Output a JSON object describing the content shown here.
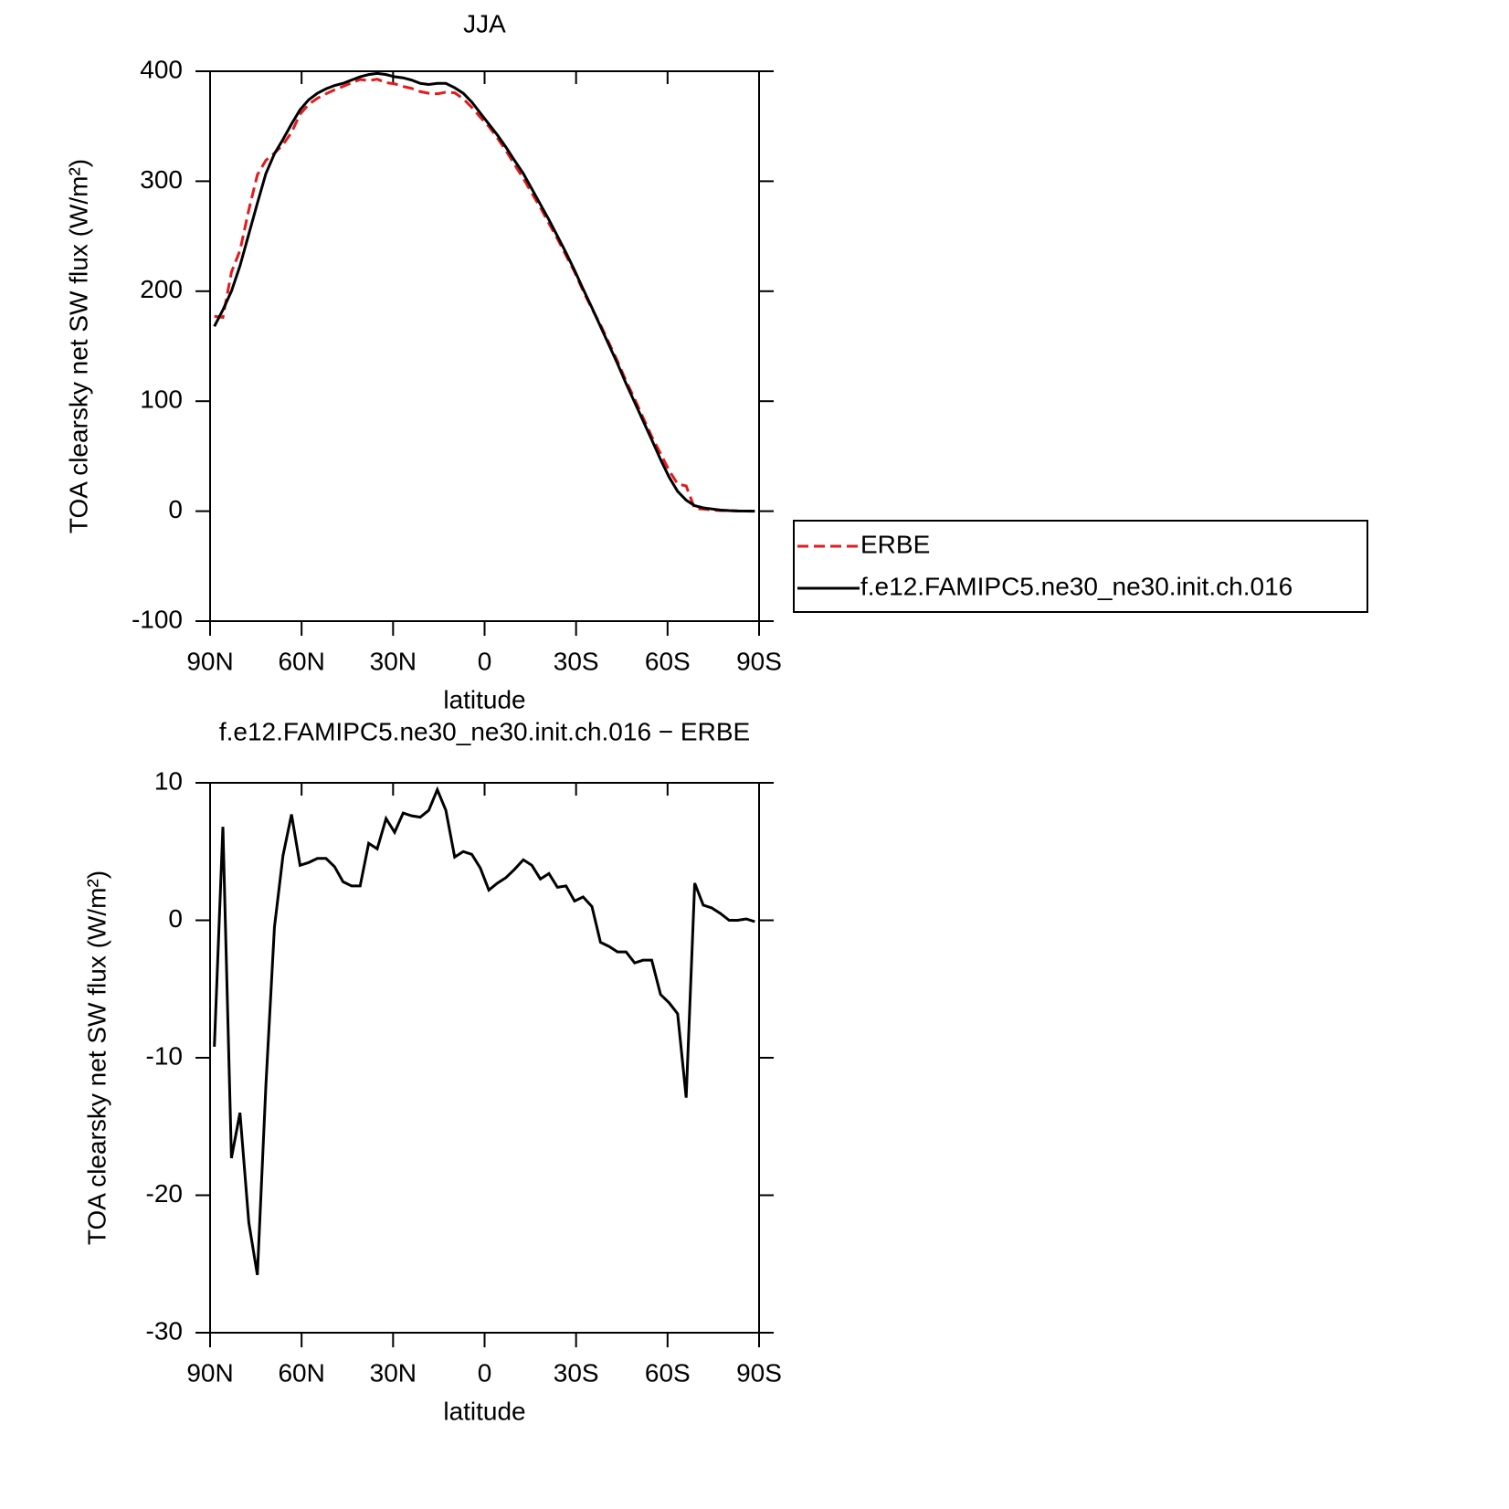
{
  "chart_data": [
    {
      "type": "line",
      "title": "JJA",
      "xlabel": "latitude",
      "ylabel": "TOA clearsky net SW flux (W/m²)",
      "x": [
        88.6,
        85.8,
        83.0,
        80.2,
        77.3,
        74.5,
        71.7,
        68.9,
        66.1,
        63.3,
        60.5,
        57.7,
        54.8,
        52.0,
        49.2,
        46.4,
        43.6,
        40.8,
        38.0,
        35.2,
        32.3,
        29.5,
        26.7,
        23.9,
        21.1,
        18.3,
        15.5,
        12.7,
        9.8,
        7.0,
        4.2,
        1.4,
        -1.4,
        -4.2,
        -7.0,
        -9.8,
        -12.7,
        -15.5,
        -18.3,
        -21.1,
        -23.9,
        -26.7,
        -29.5,
        -32.3,
        -35.2,
        -38.0,
        -40.8,
        -43.6,
        -46.4,
        -49.2,
        -52.0,
        -54.8,
        -57.7,
        -60.5,
        -63.3,
        -66.1,
        -68.9,
        -71.7,
        -74.5,
        -77.3,
        -80.2,
        -83.0,
        -85.8,
        -88.6
      ],
      "series": [
        {
          "name": "ERBE",
          "color": "#e41a1c",
          "style": "dashed",
          "values": [
            177.2,
            176.2,
            217.3,
            237,
            274,
            305.8,
            319,
            325.5,
            333.3,
            344.3,
            361,
            369.8,
            375.5,
            379.5,
            383.1,
            386.2,
            389.5,
            392.5,
            391.4,
            392.8,
            389.6,
            388.6,
            386.2,
            384.4,
            381.5,
            380,
            379.5,
            381,
            380.4,
            375,
            367.2,
            358.2,
            349.8,
            339.3,
            327.9,
            315.3,
            302.6,
            289,
            276,
            261.6,
            247.6,
            232.5,
            217.6,
            200.3,
            184,
            169.6,
            152.9,
            136.3,
            118.3,
            102.1,
            84.9,
            67.9,
            52.4,
            37,
            24.8,
            22.9,
            2.3,
            1.9,
            1.1,
            0.5,
            0.5,
            0.2,
            0,
            0.1
          ]
        },
        {
          "name": "f.e12.FAMIPC5.ne30_ne30.init.ch.016",
          "color": "#000000",
          "style": "solid",
          "values": [
            168,
            183,
            200,
            223,
            252,
            280,
            307,
            325,
            338,
            352,
            365,
            374,
            380,
            384,
            387,
            389,
            392,
            395,
            397,
            398,
            397,
            395,
            394,
            392,
            389,
            388,
            389,
            389,
            385,
            380,
            372,
            362,
            352,
            342,
            331,
            319,
            307,
            293,
            279,
            265,
            250,
            235,
            219,
            202,
            185,
            168,
            151,
            134,
            116,
            99,
            82,
            65,
            47,
            31,
            18,
            10,
            5,
            3,
            2,
            1,
            0.5,
            0.2,
            0.1,
            0
          ]
        }
      ],
      "xlim": [
        90,
        -90
      ],
      "xticks": [
        {
          "value": 90,
          "label": "90N"
        },
        {
          "value": 60,
          "label": "60N"
        },
        {
          "value": 30,
          "label": "30N"
        },
        0,
        {
          "value": -30,
          "label": "30S"
        },
        {
          "value": -60,
          "label": "60S"
        },
        {
          "value": -90,
          "label": "90S"
        }
      ],
      "ylim": [
        -100,
        400
      ],
      "yticks": [
        -100,
        0,
        100,
        200,
        300,
        400
      ],
      "legend": "right"
    },
    {
      "type": "line",
      "title": "f.e12.FAMIPC5.ne30_ne30.init.ch.016 − ERBE",
      "xlabel": "latitude",
      "ylabel": "TOA clearsky net SW flux (W/m²)",
      "x": [
        88.6,
        85.8,
        83.0,
        80.2,
        77.3,
        74.5,
        71.7,
        68.9,
        66.1,
        63.3,
        60.5,
        57.7,
        54.8,
        52.0,
        49.2,
        46.4,
        43.6,
        40.8,
        38.0,
        35.2,
        32.3,
        29.5,
        26.7,
        23.9,
        21.1,
        18.3,
        15.5,
        12.7,
        9.8,
        7.0,
        4.2,
        1.4,
        -1.4,
        -4.2,
        -7.0,
        -9.8,
        -12.7,
        -15.5,
        -18.3,
        -21.1,
        -23.9,
        -26.7,
        -29.5,
        -32.3,
        -35.2,
        -38.0,
        -40.8,
        -43.6,
        -46.4,
        -49.2,
        -52.0,
        -54.8,
        -57.7,
        -60.5,
        -63.3,
        -66.1,
        -68.9,
        -71.7,
        -74.5,
        -77.3,
        -80.2,
        -83.0,
        -85.8,
        -88.6
      ],
      "series": [
        {
          "color": "#000000",
          "style": "solid",
          "values": [
            -9.2,
            6.8,
            -17.3,
            -14.0,
            -22.0,
            -25.8,
            -12.0,
            -0.5,
            4.7,
            7.7,
            4.0,
            4.2,
            4.5,
            4.5,
            3.9,
            2.8,
            2.5,
            2.5,
            5.6,
            5.2,
            7.4,
            6.4,
            7.8,
            7.6,
            7.5,
            8.0,
            9.5,
            8.0,
            4.6,
            5.0,
            4.8,
            3.8,
            2.2,
            2.7,
            3.1,
            3.7,
            4.4,
            4.0,
            3.0,
            3.4,
            2.4,
            2.5,
            1.4,
            1.7,
            1.0,
            -1.6,
            -1.9,
            -2.3,
            -2.3,
            -3.1,
            -2.9,
            -2.9,
            -5.4,
            -6.0,
            -6.8,
            -12.9,
            2.7,
            1.1,
            0.9,
            0.5,
            0.0,
            0.0,
            0.1,
            -0.1
          ]
        }
      ],
      "xlim": [
        90,
        -90
      ],
      "xticks": [
        {
          "value": 90,
          "label": "90N"
        },
        {
          "value": 60,
          "label": "60N"
        },
        {
          "value": 30,
          "label": "30N"
        },
        0,
        {
          "value": -30,
          "label": "30S"
        },
        {
          "value": -60,
          "label": "60S"
        },
        {
          "value": -90,
          "label": "90S"
        }
      ],
      "ylim": [
        -30,
        10
      ],
      "yticks": [
        -30,
        -20,
        -10,
        0,
        10
      ]
    }
  ]
}
